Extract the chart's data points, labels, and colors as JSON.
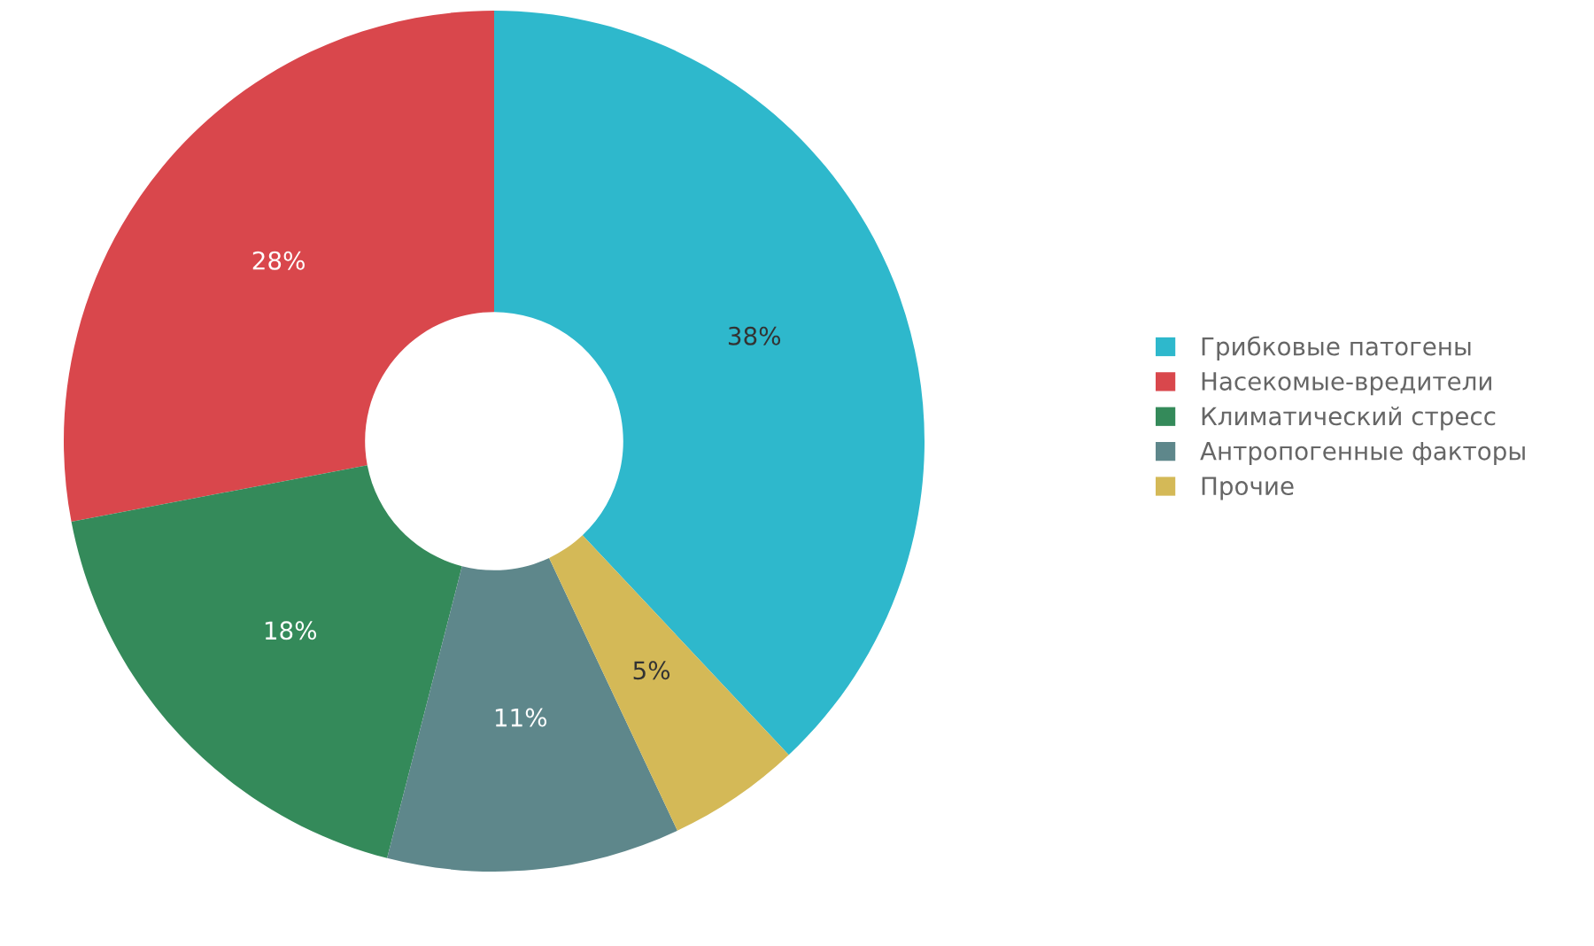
{
  "chart_data": {
    "type": "donut",
    "categories": [
      "Грибковые патогены",
      "Насекомые-вредители",
      "Климатический стресс",
      "Антропогенные факторы",
      "Прочие"
    ],
    "values": [
      38,
      28,
      18,
      11,
      5
    ],
    "colors": [
      "#2eb8cc",
      "#d9474c",
      "#348a5a",
      "#5e878b",
      "#d4b957"
    ],
    "value_labels": [
      "38%",
      "28%",
      "18%",
      "11%",
      "5%"
    ],
    "legend": "right"
  }
}
